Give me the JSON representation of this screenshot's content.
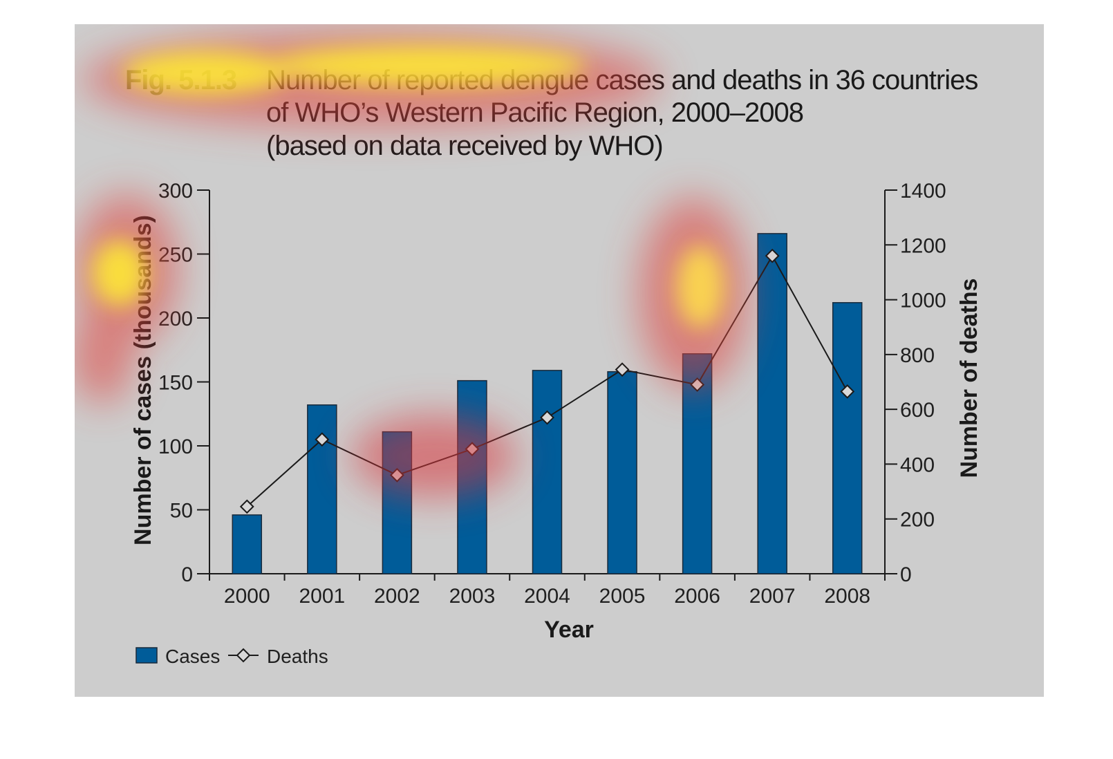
{
  "figure": {
    "label": "Fig. 5.1.3",
    "title_lines": [
      "Number of reported dengue cases and deaths in 36 countries",
      "of WHO’s Western Pacific Region, 2000–2008",
      "(based on data received by WHO)"
    ]
  },
  "colors": {
    "bar": "#005c99",
    "bar_stroke": "#1a2a3a",
    "line": "#1a1a1a",
    "marker_fill": "#d8d8d8",
    "background": "#cdcdcd"
  },
  "chart_data": {
    "type": "bar",
    "title": "Number of reported dengue cases and deaths in 36 countries of WHO’s Western Pacific Region, 2000–2008 (based on data received by WHO)",
    "xlabel": "Year",
    "ylabel": "Number of cases (thousands)",
    "y2label": "Number of deaths",
    "categories": [
      "2000",
      "2001",
      "2002",
      "2003",
      "2004",
      "2005",
      "2006",
      "2007",
      "2008"
    ],
    "ylim": [
      0,
      300
    ],
    "y2lim": [
      0,
      1400
    ],
    "yticks": [
      "0",
      "50",
      "100",
      "150",
      "200",
      "250",
      "300"
    ],
    "y2ticks": [
      "0",
      "200",
      "400",
      "600",
      "800",
      "1000",
      "1200",
      "1400"
    ],
    "series": [
      {
        "name": "Cases",
        "type": "bar",
        "axis": "left",
        "values": [
          46,
          132,
          111,
          151,
          159,
          158,
          172,
          266,
          212
        ]
      },
      {
        "name": "Deaths",
        "type": "line",
        "axis": "right",
        "marker": "diamond",
        "values": [
          245,
          490,
          360,
          455,
          570,
          745,
          690,
          1160,
          665
        ]
      }
    ],
    "legend": {
      "placement": "bottom-left",
      "entries": [
        "Cases",
        "Deaths"
      ]
    },
    "grid": false
  }
}
